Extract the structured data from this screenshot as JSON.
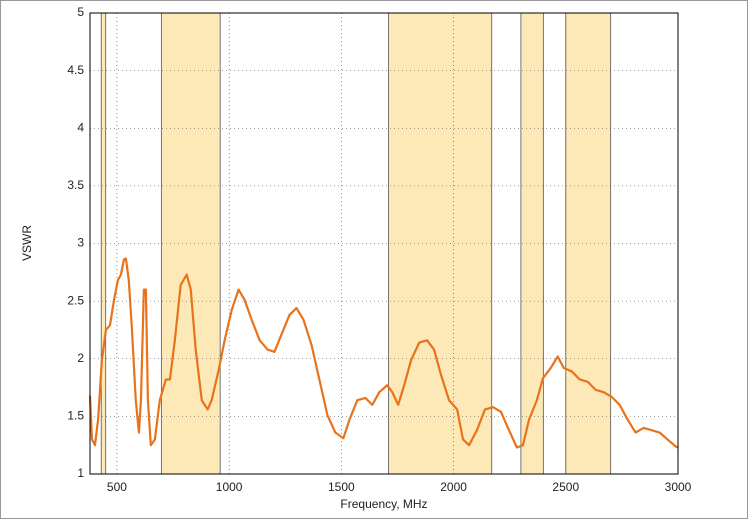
{
  "chart_data": {
    "type": "line",
    "xlabel": "Frequency, MHz",
    "ylabel": "VSWR",
    "xlim": [
      380,
      3000
    ],
    "ylim": [
      1,
      5
    ],
    "xticks": [
      500,
      1000,
      1500,
      2000,
      2500,
      3000
    ],
    "yticks": [
      1,
      1.5,
      2,
      2.5,
      3,
      3.5,
      4,
      4.5,
      5
    ],
    "grid": true,
    "bands": [
      [
        430,
        450
      ],
      [
        698,
        960
      ],
      [
        1710,
        2170
      ],
      [
        2300,
        2400
      ],
      [
        2500,
        2700
      ]
    ],
    "band_color": "#fde9b8",
    "series": [
      {
        "color": "#e8731a",
        "x": [
          380,
          389,
          402,
          416,
          433,
          451,
          469,
          487,
          504,
          518,
          531,
          540,
          553,
          567,
          584,
          598,
          607,
          620,
          629,
          638,
          651,
          669,
          691,
          718,
          736,
          758,
          784,
          811,
          829,
          851,
          878,
          904,
          922,
          953,
          980,
          1011,
          1042,
          1069,
          1100,
          1136,
          1171,
          1202,
          1233,
          1269,
          1300,
          1331,
          1367,
          1402,
          1438,
          1473,
          1509,
          1536,
          1571,
          1607,
          1638,
          1669,
          1704,
          1727,
          1753,
          1780,
          1811,
          1847,
          1882,
          1913,
          1944,
          1980,
          2016,
          2042,
          2069,
          2104,
          2140,
          2176,
          2211,
          2247,
          2282,
          2309,
          2336,
          2371,
          2398,
          2433,
          2464,
          2491,
          2527,
          2562,
          2598,
          2633,
          2669,
          2704,
          2740,
          2776,
          2811,
          2847,
          2882,
          2918,
          2953,
          2989,
          3000
        ],
        "values": [
          1.68,
          1.3,
          1.25,
          1.47,
          1.99,
          2.25,
          2.29,
          2.51,
          2.68,
          2.73,
          2.86,
          2.87,
          2.68,
          2.25,
          1.64,
          1.36,
          1.64,
          2.6,
          2.6,
          1.64,
          1.25,
          1.3,
          1.64,
          1.82,
          1.82,
          2.16,
          2.64,
          2.73,
          2.6,
          2.08,
          1.64,
          1.56,
          1.64,
          1.9,
          2.16,
          2.42,
          2.6,
          2.51,
          2.34,
          2.16,
          2.08,
          2.06,
          2.21,
          2.38,
          2.44,
          2.34,
          2.12,
          1.82,
          1.51,
          1.36,
          1.31,
          1.47,
          1.64,
          1.66,
          1.6,
          1.71,
          1.77,
          1.71,
          1.6,
          1.77,
          1.99,
          2.14,
          2.16,
          2.08,
          1.86,
          1.64,
          1.56,
          1.3,
          1.25,
          1.38,
          1.56,
          1.58,
          1.54,
          1.38,
          1.23,
          1.25,
          1.47,
          1.64,
          1.83,
          1.92,
          2.02,
          1.92,
          1.89,
          1.82,
          1.8,
          1.73,
          1.71,
          1.67,
          1.6,
          1.47,
          1.36,
          1.4,
          1.38,
          1.36,
          1.3,
          1.24,
          1.23
        ]
      }
    ]
  }
}
